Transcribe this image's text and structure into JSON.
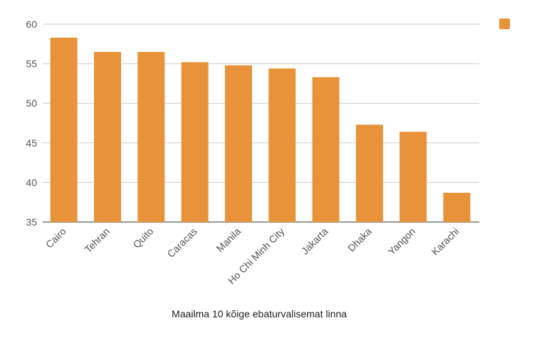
{
  "chart_data": {
    "type": "bar",
    "title": "",
    "xlabel": "Maailma 10 kõige ebaturvalisemat linna",
    "ylabel": "",
    "ylim": [
      35,
      60
    ],
    "yticks": [
      "35",
      "40",
      "45",
      "50",
      "55",
      "60"
    ],
    "grid": true,
    "legend_position": "top-right",
    "bar_color": "#E8923A",
    "categories": [
      "Cairo",
      "Tehran",
      "Quito",
      "Caracas",
      "Manila",
      "Ho Chi Minh City",
      "Jakarta",
      "Dhaka",
      "Yangon",
      "Karachi"
    ],
    "series": [
      {
        "values": [
          58.3,
          56.5,
          56.5,
          55.2,
          54.8,
          54.4,
          53.3,
          47.3,
          46.4,
          38.7
        ]
      }
    ]
  }
}
